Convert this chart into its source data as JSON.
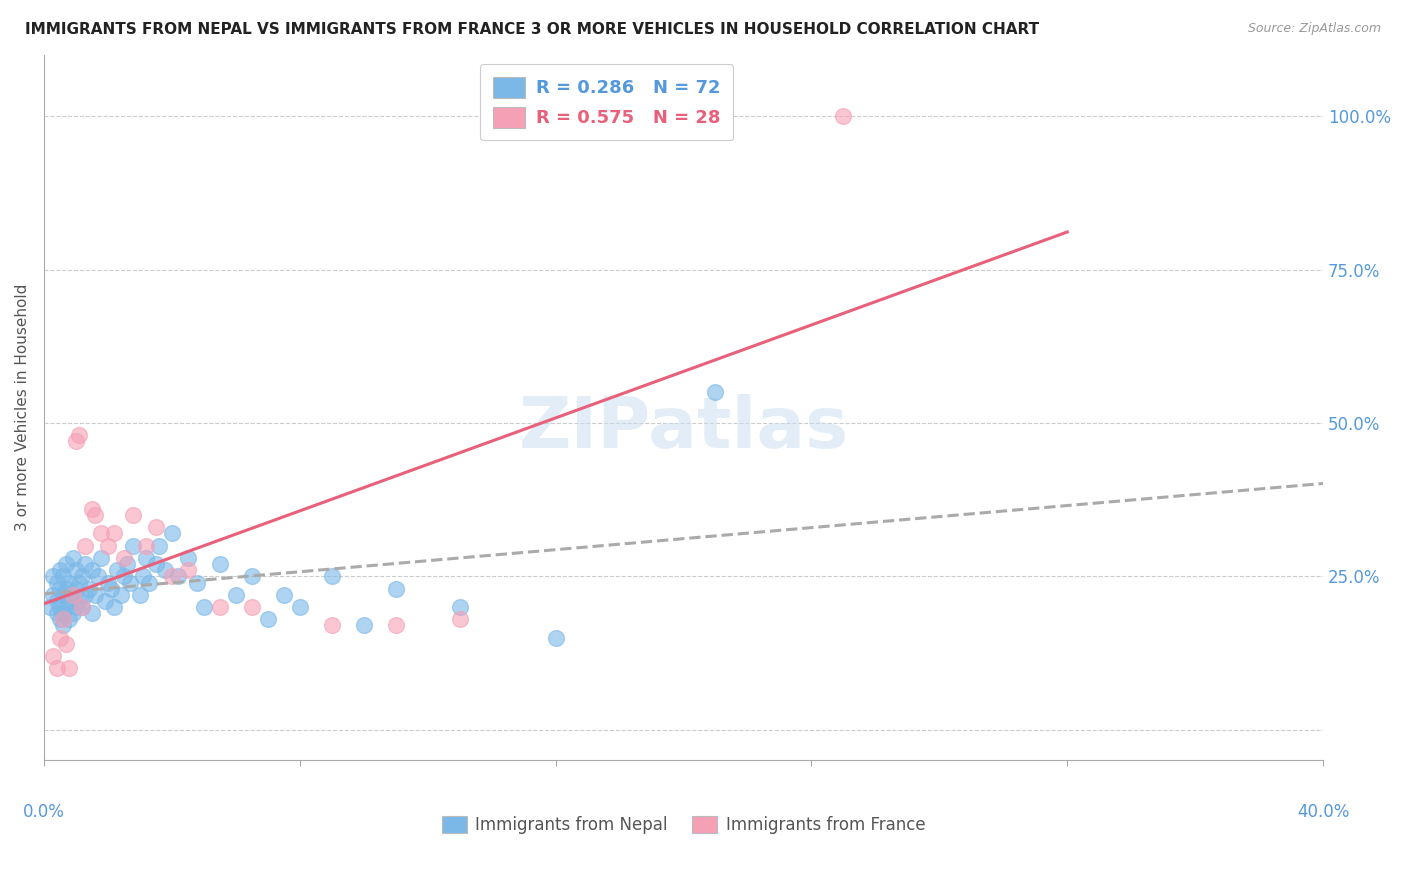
{
  "title": "IMMIGRANTS FROM NEPAL VS IMMIGRANTS FROM FRANCE 3 OR MORE VEHICLES IN HOUSEHOLD CORRELATION CHART",
  "source": "Source: ZipAtlas.com",
  "ylabel": "3 or more Vehicles in Household",
  "ytick_labels": [
    "",
    "25.0%",
    "50.0%",
    "75.0%",
    "100.0%"
  ],
  "ytick_values": [
    0.0,
    0.25,
    0.5,
    0.75,
    1.0
  ],
  "xtick_values": [
    0.0,
    0.08,
    0.16,
    0.24,
    0.32,
    0.4
  ],
  "xlim": [
    0.0,
    0.4
  ],
  "ylim": [
    -0.05,
    1.1
  ],
  "nepal_color": "#7bb8e8",
  "france_color": "#f5a0b5",
  "nepal_line_color": "#aaaaaa",
  "france_line_color": "#e8607a",
  "label_color": "#5599dd",
  "nepal_R": 0.286,
  "nepal_N": 72,
  "france_R": 0.575,
  "france_N": 28,
  "legend_label_nepal": "Immigrants from Nepal",
  "legend_label_france": "Immigrants from France",
  "watermark": "ZIPatlas",
  "nepal_scatter_x": [
    0.002,
    0.003,
    0.003,
    0.004,
    0.004,
    0.004,
    0.005,
    0.005,
    0.005,
    0.005,
    0.006,
    0.006,
    0.006,
    0.006,
    0.007,
    0.007,
    0.007,
    0.008,
    0.008,
    0.008,
    0.009,
    0.009,
    0.009,
    0.01,
    0.01,
    0.01,
    0.011,
    0.011,
    0.012,
    0.012,
    0.013,
    0.013,
    0.014,
    0.015,
    0.015,
    0.016,
    0.017,
    0.018,
    0.019,
    0.02,
    0.021,
    0.022,
    0.023,
    0.024,
    0.025,
    0.026,
    0.027,
    0.028,
    0.03,
    0.031,
    0.032,
    0.033,
    0.035,
    0.036,
    0.038,
    0.04,
    0.042,
    0.045,
    0.048,
    0.05,
    0.055,
    0.06,
    0.065,
    0.07,
    0.075,
    0.08,
    0.09,
    0.1,
    0.11,
    0.13,
    0.16,
    0.21
  ],
  "nepal_scatter_y": [
    0.2,
    0.22,
    0.25,
    0.19,
    0.21,
    0.24,
    0.18,
    0.2,
    0.23,
    0.26,
    0.17,
    0.19,
    0.22,
    0.25,
    0.2,
    0.23,
    0.27,
    0.18,
    0.21,
    0.24,
    0.19,
    0.22,
    0.28,
    0.2,
    0.23,
    0.26,
    0.21,
    0.24,
    0.2,
    0.25,
    0.22,
    0.27,
    0.23,
    0.19,
    0.26,
    0.22,
    0.25,
    0.28,
    0.21,
    0.24,
    0.23,
    0.2,
    0.26,
    0.22,
    0.25,
    0.27,
    0.24,
    0.3,
    0.22,
    0.25,
    0.28,
    0.24,
    0.27,
    0.3,
    0.26,
    0.32,
    0.25,
    0.28,
    0.24,
    0.2,
    0.27,
    0.22,
    0.25,
    0.18,
    0.22,
    0.2,
    0.25,
    0.17,
    0.23,
    0.2,
    0.15,
    0.55
  ],
  "france_scatter_x": [
    0.003,
    0.004,
    0.005,
    0.006,
    0.007,
    0.008,
    0.009,
    0.01,
    0.011,
    0.012,
    0.013,
    0.015,
    0.016,
    0.018,
    0.02,
    0.022,
    0.025,
    0.028,
    0.032,
    0.035,
    0.04,
    0.045,
    0.055,
    0.065,
    0.09,
    0.11,
    0.13,
    0.25
  ],
  "france_scatter_y": [
    0.12,
    0.1,
    0.15,
    0.18,
    0.14,
    0.1,
    0.22,
    0.47,
    0.48,
    0.2,
    0.3,
    0.36,
    0.35,
    0.32,
    0.3,
    0.32,
    0.28,
    0.35,
    0.3,
    0.33,
    0.25,
    0.26,
    0.2,
    0.2,
    0.17,
    0.17,
    0.18,
    1.0
  ]
}
